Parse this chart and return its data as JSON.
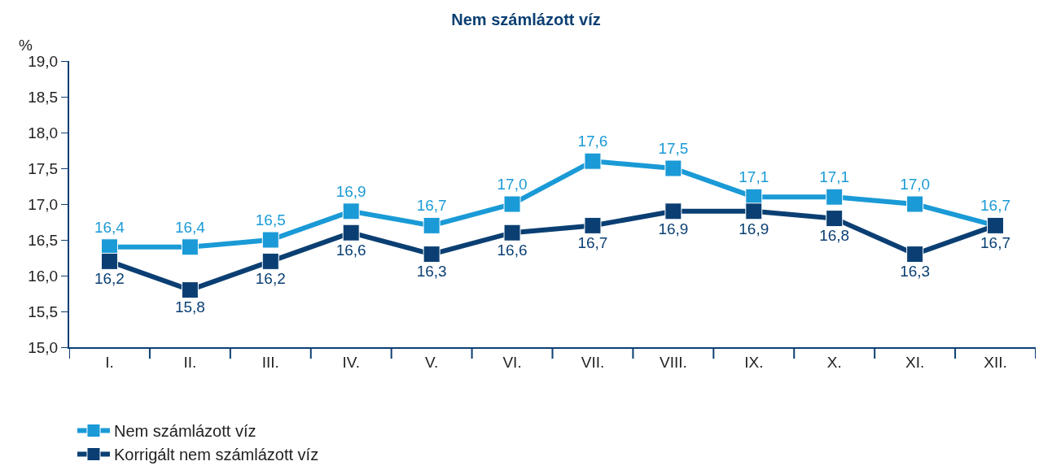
{
  "chart_data": {
    "type": "line",
    "title": "Nem számlázott víz",
    "ylabel": "%",
    "categories": [
      "I.",
      "II.",
      "III.",
      "IV.",
      "V.",
      "VI.",
      "VII.",
      "VIII.",
      "IX.",
      "X.",
      "XI.",
      "XII."
    ],
    "series": [
      {
        "name": "Nem számlázott víz",
        "color": "#1a9ad6",
        "values": [
          16.4,
          16.4,
          16.5,
          16.9,
          16.7,
          17.0,
          17.6,
          17.5,
          17.1,
          17.1,
          17.0,
          16.7
        ],
        "value_labels": [
          "16,4",
          "16,4",
          "16,5",
          "16,9",
          "16,7",
          "17,0",
          "17,6",
          "17,5",
          "17,1",
          "17,1",
          "17,0",
          "16,7"
        ]
      },
      {
        "name": "Korrigált nem számlázott víz",
        "color": "#0b3f73",
        "values": [
          16.2,
          15.8,
          16.2,
          16.6,
          16.3,
          16.6,
          16.7,
          16.9,
          16.9,
          16.8,
          16.3,
          16.7
        ],
        "value_labels": [
          "16,2",
          "15,8",
          "16,2",
          "16,6",
          "16,3",
          "16,6",
          "16,7",
          "16,9",
          "16,9",
          "16,8",
          "16,3",
          "16,7"
        ]
      }
    ],
    "ylim": [
      15.0,
      19.0
    ],
    "yticks": [
      {
        "value": 15.0,
        "label": "15,0"
      },
      {
        "value": 15.5,
        "label": "15,5"
      },
      {
        "value": 16.0,
        "label": "16,0"
      },
      {
        "value": 16.5,
        "label": "16,5"
      },
      {
        "value": 17.0,
        "label": "17,0"
      },
      {
        "value": 17.5,
        "label": "17,5"
      },
      {
        "value": 18.0,
        "label": "18,0"
      },
      {
        "value": 18.5,
        "label": "18,5"
      },
      {
        "value": 19.0,
        "label": "19,0"
      }
    ],
    "legend": "bottom",
    "marker": "square",
    "line_style": "solid"
  }
}
